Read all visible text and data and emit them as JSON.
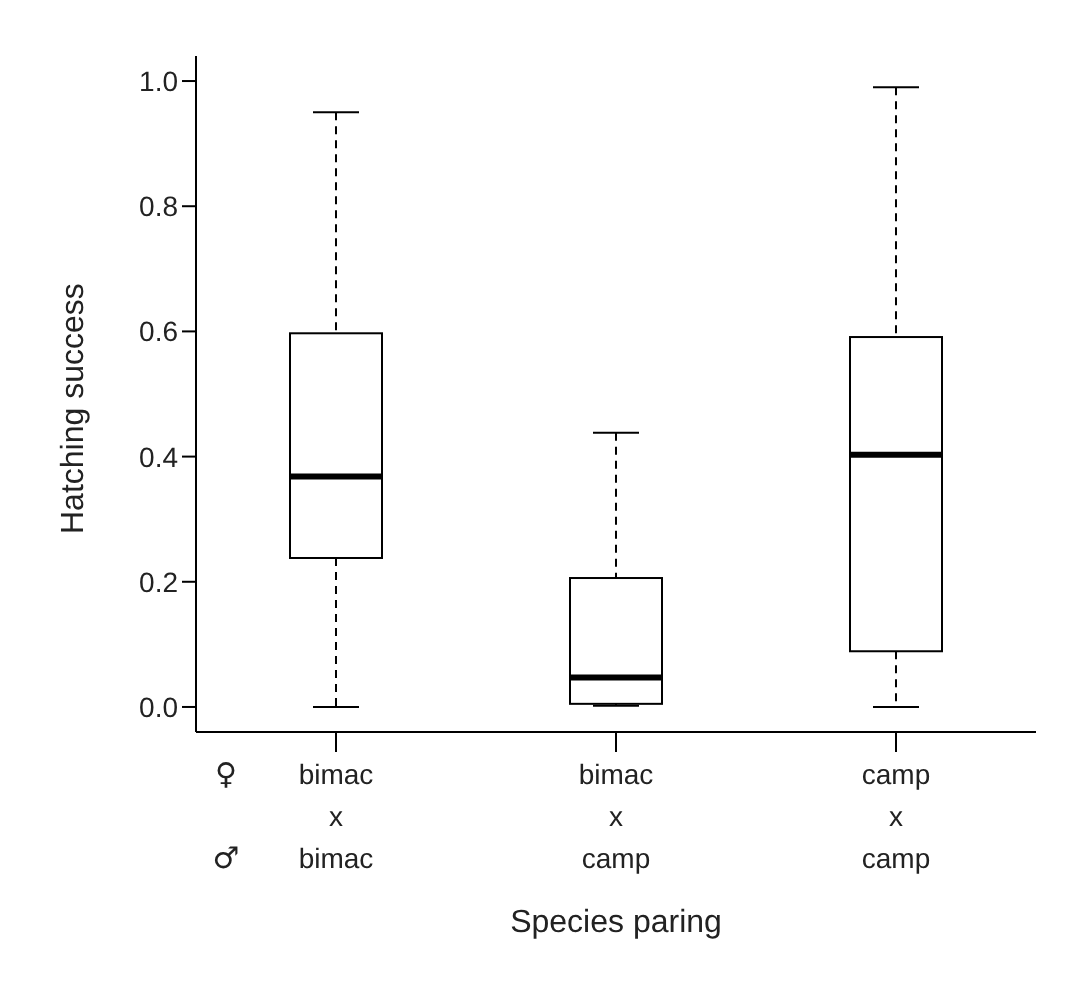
{
  "chart_data": {
    "type": "box",
    "xlabel": "Species paring",
    "ylabel": "Hatching success",
    "categories": [
      "bimac\nx\nbimac",
      "bimac\nx\ncamp",
      "camp\nx\ncamp"
    ],
    "boxes": [
      {
        "low": 0.0,
        "q1": 0.238,
        "median": 0.368,
        "q3": 0.597,
        "high": 0.95
      },
      {
        "low": 0.002,
        "q1": 0.005,
        "median": 0.047,
        "q3": 0.206,
        "high": 0.438
      },
      {
        "low": 0.0,
        "q1": 0.089,
        "median": 0.403,
        "q3": 0.591,
        "high": 0.99
      }
    ],
    "ylim": [
      -0.04,
      1.04
    ],
    "yticks": [
      {
        "value": 0,
        "label": "0.0"
      },
      {
        "value": 0.2,
        "label": "0.2"
      },
      {
        "value": 0.4,
        "label": "0.4"
      },
      {
        "value": 0.6,
        "label": "0.6"
      },
      {
        "value": 0.8,
        "label": "0.8"
      },
      {
        "value": 1,
        "label": "1.0"
      }
    ],
    "annotations": [
      "♀",
      "♂"
    ],
    "grid": false,
    "legend": false
  }
}
